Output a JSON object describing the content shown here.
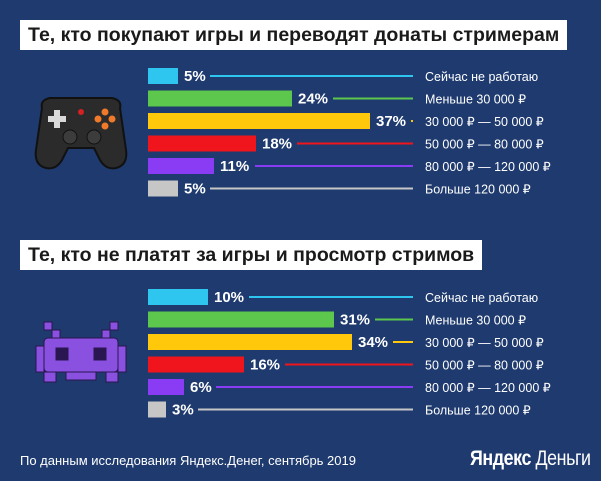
{
  "chart_data": [
    {
      "type": "bar",
      "title": "Те, кто покупают игры и переводят донаты стримерам",
      "categories": [
        "Сейчас не работаю",
        "Меньше 30 000 ₽",
        "30 000 ₽ — 50 000 ₽",
        "50 000 ₽ — 80 000 ₽",
        "80 000 ₽ — 120 000 ₽",
        "Больше 120 000 ₽"
      ],
      "values": [
        5,
        24,
        37,
        18,
        11,
        5
      ],
      "value_labels": [
        "5%",
        "24%",
        "37%",
        "18%",
        "11%",
        "5%"
      ],
      "colors": [
        "#2ec5ef",
        "#5cc74c",
        "#ffc80a",
        "#f0151c",
        "#8a3cf5",
        "#c6c6c6"
      ],
      "orientation": "horizontal",
      "icon": "gamepad-icon"
    },
    {
      "type": "bar",
      "title": "Те, кто не платят за игры и просмотр стримов",
      "categories": [
        "Сейчас не работаю",
        "Меньше 30 000 ₽",
        "30 000 ₽ — 50 000 ₽",
        "50 000 ₽ — 80 000 ₽",
        "80 000 ₽ — 120 000 ₽",
        "Больше 120 000 ₽"
      ],
      "values": [
        10,
        31,
        34,
        16,
        6,
        3
      ],
      "value_labels": [
        "10%",
        "31%",
        "34%",
        "16%",
        "6%",
        "3%"
      ],
      "colors": [
        "#2ec5ef",
        "#5cc74c",
        "#ffc80a",
        "#f0151c",
        "#8a3cf5",
        "#c6c6c6"
      ],
      "orientation": "horizontal",
      "icon": "pixel-alien-icon"
    }
  ],
  "footer": {
    "source": "По данным исследования Яндекс.Денег, сентябрь 2019",
    "brand_part1": "Яндекс",
    "brand_part2": "Деньги"
  },
  "colors": {
    "background": "#1e3a6e"
  }
}
